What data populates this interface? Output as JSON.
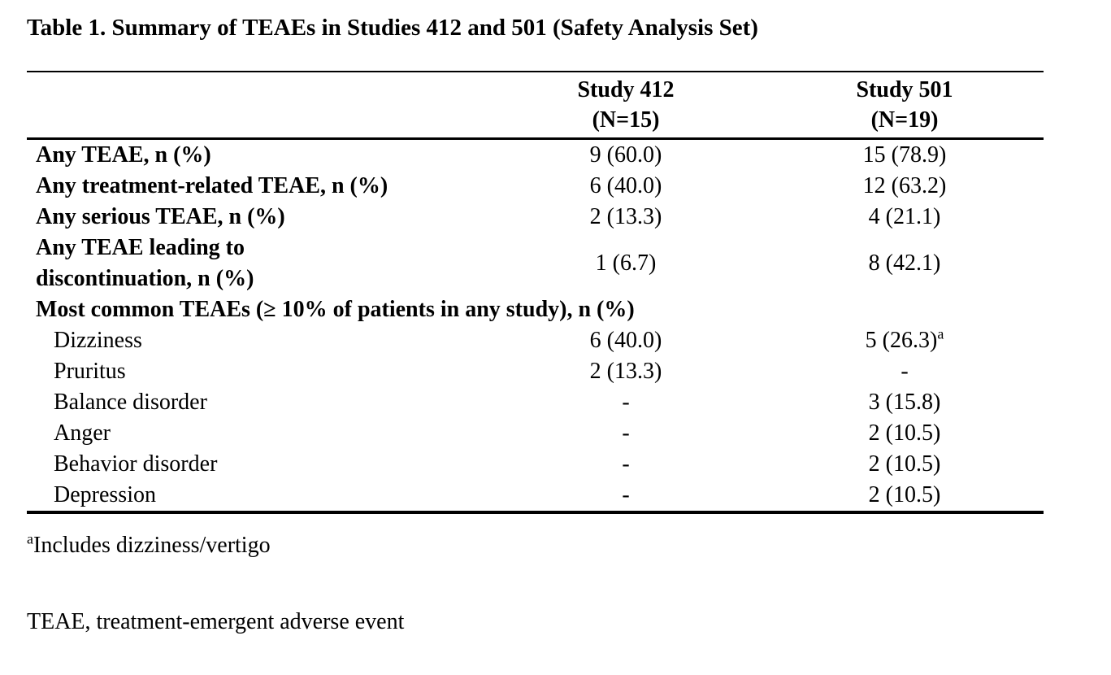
{
  "title": "Table 1. Summary of TEAEs in Studies 412 and 501 (Safety Analysis Set)",
  "table": {
    "columns": [
      {
        "line1": "Study 412",
        "line2": "(N=15)"
      },
      {
        "line1": "Study 501",
        "line2": "(N=19)"
      }
    ],
    "rows": [
      {
        "label": "Any TEAE, n (%)",
        "study412": "9 (60.0)",
        "study501": "15 (78.9)"
      },
      {
        "label": "Any treatment-related TEAE, n (%)",
        "study412": "6 (40.0)",
        "study501": "12 (63.2)"
      },
      {
        "label": "Any serious TEAE, n (%)",
        "study412": "2 (13.3)",
        "study501": "4 (21.1)"
      },
      {
        "label_lines": [
          "Any TEAE leading to",
          "discontinuation, n (%)"
        ],
        "study412": "1 (6.7)",
        "study501": "8 (42.1)"
      },
      {
        "label": "Most common TEAEs (≥ 10% of patients in any study), n (%)"
      },
      {
        "label": "Dizziness",
        "study412": "6 (40.0)",
        "study501": "5 (26.3)",
        "study501_sup": "a"
      },
      {
        "label": "Pruritus",
        "study412": "2 (13.3)",
        "study501": "-"
      },
      {
        "label": "Balance disorder",
        "study412": "-",
        "study501": "3 (15.8)"
      },
      {
        "label": "Anger",
        "study412": "-",
        "study501": "2 (10.5)"
      },
      {
        "label": "Behavior disorder",
        "study412": "-",
        "study501": "2 (10.5)"
      },
      {
        "label": "Depression",
        "study412": "-",
        "study501": "2 (10.5)"
      }
    ]
  },
  "footnotes": {
    "a": {
      "sup": "a",
      "text": "Includes dizziness/vertigo"
    },
    "abbrev": {
      "text": "TEAE, treatment-emergent adverse event"
    }
  }
}
